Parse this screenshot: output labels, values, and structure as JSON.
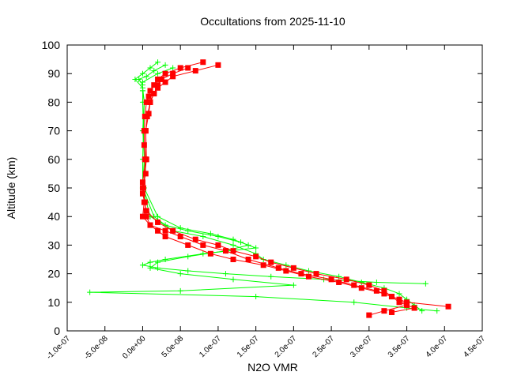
{
  "chart_data": {
    "type": "line",
    "title": "Occultations from 2025-11-10",
    "xlabel": "N2O VMR",
    "ylabel": "Altitude (km)",
    "xlim": [
      -1e-07,
      4.5e-07
    ],
    "ylim": [
      0,
      100
    ],
    "xticks": [
      "-1.0e-07",
      "-5.0e-08",
      "0.0e+00",
      "5.0e-08",
      "1.0e-07",
      "1.5e-07",
      "2.0e-07",
      "2.5e-07",
      "3.0e-07",
      "3.5e-07",
      "4.0e-07",
      "4.5e-07"
    ],
    "xtick_values": [
      -1e-07,
      -5e-08,
      0,
      5e-08,
      1e-07,
      1.5e-07,
      2e-07,
      2.5e-07,
      3e-07,
      3.5e-07,
      4e-07,
      4.5e-07
    ],
    "yticks": [
      "0",
      "10",
      "20",
      "30",
      "40",
      "50",
      "60",
      "70",
      "80",
      "90",
      "100"
    ],
    "ytick_values": [
      0,
      10,
      20,
      30,
      40,
      50,
      60,
      70,
      80,
      90,
      100
    ],
    "grid": false,
    "legend": "none",
    "series": [
      {
        "color": "#00ff00",
        "marker": "cross",
        "y": [
          93,
          91,
          89,
          88,
          86,
          84,
          80,
          70,
          60,
          50,
          45,
          40,
          37,
          35,
          33,
          31,
          29,
          27,
          25,
          24,
          23,
          22,
          21,
          20,
          19,
          18,
          17,
          16.5
        ],
        "x": [
          3e-08,
          1.5e-08,
          5e-09,
          -5e-09,
          0,
          0,
          0,
          1e-09,
          2e-09,
          0,
          5e-09,
          1e-08,
          3e-08,
          6e-08,
          1e-07,
          1.3e-07,
          1.5e-07,
          8e-08,
          3e-08,
          1e-08,
          0,
          2e-08,
          6e-08,
          1.1e-07,
          1.7e-07,
          2.4e-07,
          3.1e-07,
          3.75e-07
        ]
      },
      {
        "color": "#00ff00",
        "marker": "cross",
        "y": [
          94,
          92,
          90,
          88,
          85,
          80,
          70,
          60,
          50,
          40,
          36,
          34,
          32,
          30,
          28,
          26,
          24,
          22,
          20,
          18,
          16,
          14,
          13.5,
          12,
          10,
          8,
          7
        ],
        "x": [
          2e-08,
          1e-08,
          0,
          -1e-08,
          0,
          2e-09,
          0,
          3e-09,
          2e-09,
          2e-08,
          5e-08,
          9e-08,
          1.2e-07,
          1.4e-07,
          1.1e-07,
          6e-08,
          2e-08,
          1e-08,
          5e-08,
          1.2e-07,
          2e-07,
          5e-08,
          -7e-08,
          1.5e-07,
          2.8e-07,
          3.5e-07,
          3.9e-07
        ]
      },
      {
        "color": "#00ff00",
        "marker": "cross",
        "y": [
          92,
          90,
          87,
          84,
          80,
          70,
          60,
          50,
          40,
          35,
          33,
          30,
          27,
          25,
          23,
          21,
          19,
          17,
          15,
          13,
          11,
          9,
          7
        ],
        "x": [
          4e-08,
          2e-08,
          0,
          0,
          2e-09,
          1e-09,
          0,
          0,
          1.5e-08,
          4e-08,
          8e-08,
          1.2e-07,
          1.5e-07,
          1.6e-07,
          1.9e-07,
          2.2e-07,
          2.6e-07,
          2.9e-07,
          3.2e-07,
          3.4e-07,
          3.5e-07,
          3.6e-07,
          3.7e-07
        ]
      },
      {
        "color": "#ff0000",
        "marker": "square",
        "y": [
          94,
          92,
          90,
          88,
          86,
          84,
          82,
          80,
          75,
          70,
          65,
          60,
          55,
          50,
          45,
          40,
          37,
          35,
          33,
          30,
          28,
          25,
          22,
          20,
          18,
          16,
          14,
          12,
          10,
          8.5
        ],
        "x": [
          8e-08,
          5e-08,
          3e-08,
          2e-08,
          1.5e-08,
          1e-08,
          8e-09,
          5e-09,
          3e-09,
          2e-09,
          2e-09,
          3e-09,
          4e-09,
          0,
          3e-09,
          5e-09,
          1e-08,
          3e-08,
          5e-08,
          8e-08,
          1.1e-07,
          1.4e-07,
          1.8e-07,
          2.1e-07,
          2.5e-07,
          2.8e-07,
          3.1e-07,
          3.3e-07,
          3.5e-07,
          4.05e-07
        ]
      },
      {
        "color": "#ff0000",
        "marker": "square",
        "y": [
          93,
          91,
          89,
          87,
          85,
          83,
          80,
          75,
          70,
          60,
          50,
          45,
          40,
          37,
          35,
          33,
          30,
          27,
          25,
          23,
          21,
          19,
          17,
          15,
          13,
          11,
          9,
          7,
          5.5
        ],
        "x": [
          1e-07,
          7e-08,
          4e-08,
          3e-08,
          2e-08,
          1.5e-08,
          1e-08,
          6e-09,
          4e-09,
          5e-09,
          1e-09,
          2e-09,
          0,
          1e-08,
          2e-08,
          3e-08,
          6e-08,
          9e-08,
          1.2e-07,
          1.6e-07,
          1.9e-07,
          2.2e-07,
          2.6e-07,
          2.9e-07,
          3.2e-07,
          3.4e-07,
          3.5e-07,
          3.2e-07,
          3e-07
        ]
      },
      {
        "color": "#ff0000",
        "marker": "square",
        "y": [
          92,
          90,
          88,
          86,
          83,
          80,
          76,
          70,
          60,
          52,
          48,
          42,
          38,
          35,
          32,
          30,
          28,
          26,
          24,
          22,
          20,
          18,
          16,
          14,
          12,
          10,
          8,
          6.5
        ],
        "x": [
          6e-08,
          4e-08,
          2.5e-08,
          2e-08,
          1.5e-08,
          1e-08,
          8e-09,
          4e-09,
          4e-09,
          0,
          0,
          5e-09,
          2e-08,
          4e-08,
          7e-08,
          1e-07,
          1.2e-07,
          1.5e-07,
          1.7e-07,
          2e-07,
          2.3e-07,
          2.7e-07,
          3e-07,
          3.2e-07,
          3.3e-07,
          3.4e-07,
          3.6e-07,
          3.3e-07
        ]
      }
    ]
  }
}
